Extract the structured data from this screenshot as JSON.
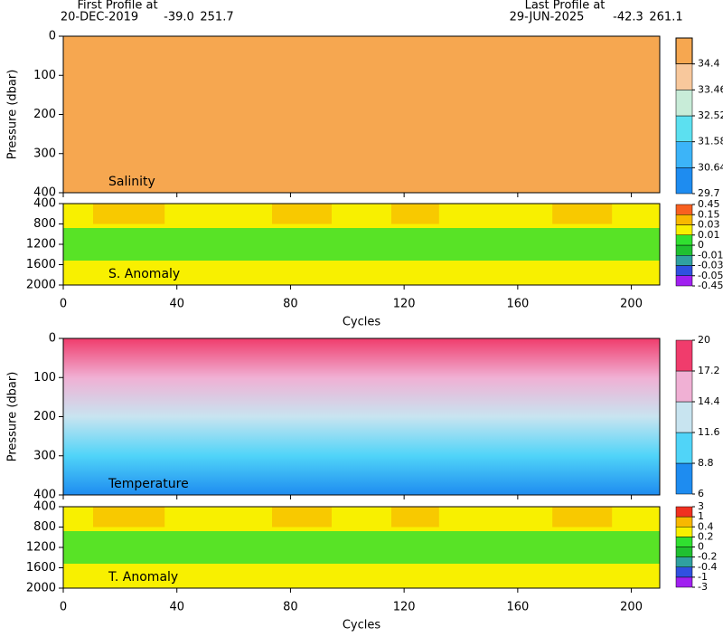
{
  "header": {
    "first_label": "First Profile at",
    "first_date": "20-DEC-2019",
    "first_lat": "-39.0",
    "first_lon": "251.7",
    "last_label": "Last Profile at",
    "last_date": "29-JUN-2025",
    "last_lat": "-42.3",
    "last_lon": "261.1"
  },
  "chart_data": [
    {
      "type": "heatmap",
      "label": "Salinity",
      "ylabel": "Pressure (dbar)",
      "ylim": [
        400,
        0
      ],
      "yticks": [
        0,
        100,
        200,
        300,
        400
      ],
      "xlim": [
        0,
        210
      ],
      "xticks": [
        0,
        40,
        80,
        120,
        160,
        200
      ],
      "colorbar": {
        "ticks": [
          29.7,
          30.64,
          31.58,
          32.52,
          33.46,
          34.4
        ],
        "colors": [
          "#1e8cf0",
          "#3cb4f8",
          "#5ce0f0",
          "#c8ecd8",
          "#f8c89c"
        ],
        "over_color": "#f6a750"
      }
    },
    {
      "type": "heatmap",
      "label": "S. Anomaly",
      "ylim": [
        2000,
        400
      ],
      "yticks": [
        400,
        800,
        1200,
        1600,
        2000
      ],
      "xlim": [
        0,
        210
      ],
      "xticks": [
        0,
        40,
        80,
        120,
        160,
        200
      ],
      "xlabel": "Cycles",
      "colorbar": {
        "ticks": [
          -0.45,
          -0.05,
          -0.03,
          -0.01,
          0,
          0.01,
          0.03,
          0.15,
          0.45
        ],
        "colors": [
          "#a020f0",
          "#3050e0",
          "#30a0a0",
          "#20c030",
          "#30e030",
          "#f8f000",
          "#f8b800",
          "#f86020"
        ]
      }
    },
    {
      "type": "heatmap",
      "label": "Temperature",
      "ylabel": "Pressure (dbar)",
      "ylim": [
        400,
        0
      ],
      "yticks": [
        0,
        100,
        200,
        300,
        400
      ],
      "xlim": [
        0,
        210
      ],
      "xticks": [
        0,
        40,
        80,
        120,
        160,
        200
      ],
      "colorbar": {
        "ticks": [
          6,
          8.8,
          11.6,
          14.4,
          17.2,
          20
        ],
        "colors": [
          "#1e8cf0",
          "#50d4f8",
          "#c8e4f0",
          "#f0b0d4",
          "#f03c6c"
        ]
      }
    },
    {
      "type": "heatmap",
      "label": "T. Anomaly",
      "ylim": [
        2000,
        400
      ],
      "yticks": [
        400,
        800,
        1200,
        1600,
        2000
      ],
      "xlim": [
        0,
        210
      ],
      "xticks": [
        0,
        40,
        80,
        120,
        160,
        200
      ],
      "xlabel": "Cycles",
      "colorbar": {
        "ticks": [
          -3,
          -1,
          -0.4,
          -0.2,
          0,
          0.2,
          0.4,
          1,
          3
        ],
        "colors": [
          "#a020f0",
          "#3050e0",
          "#30a0a0",
          "#20c030",
          "#30e030",
          "#f8f000",
          "#f8b800",
          "#f03020"
        ]
      }
    }
  ]
}
